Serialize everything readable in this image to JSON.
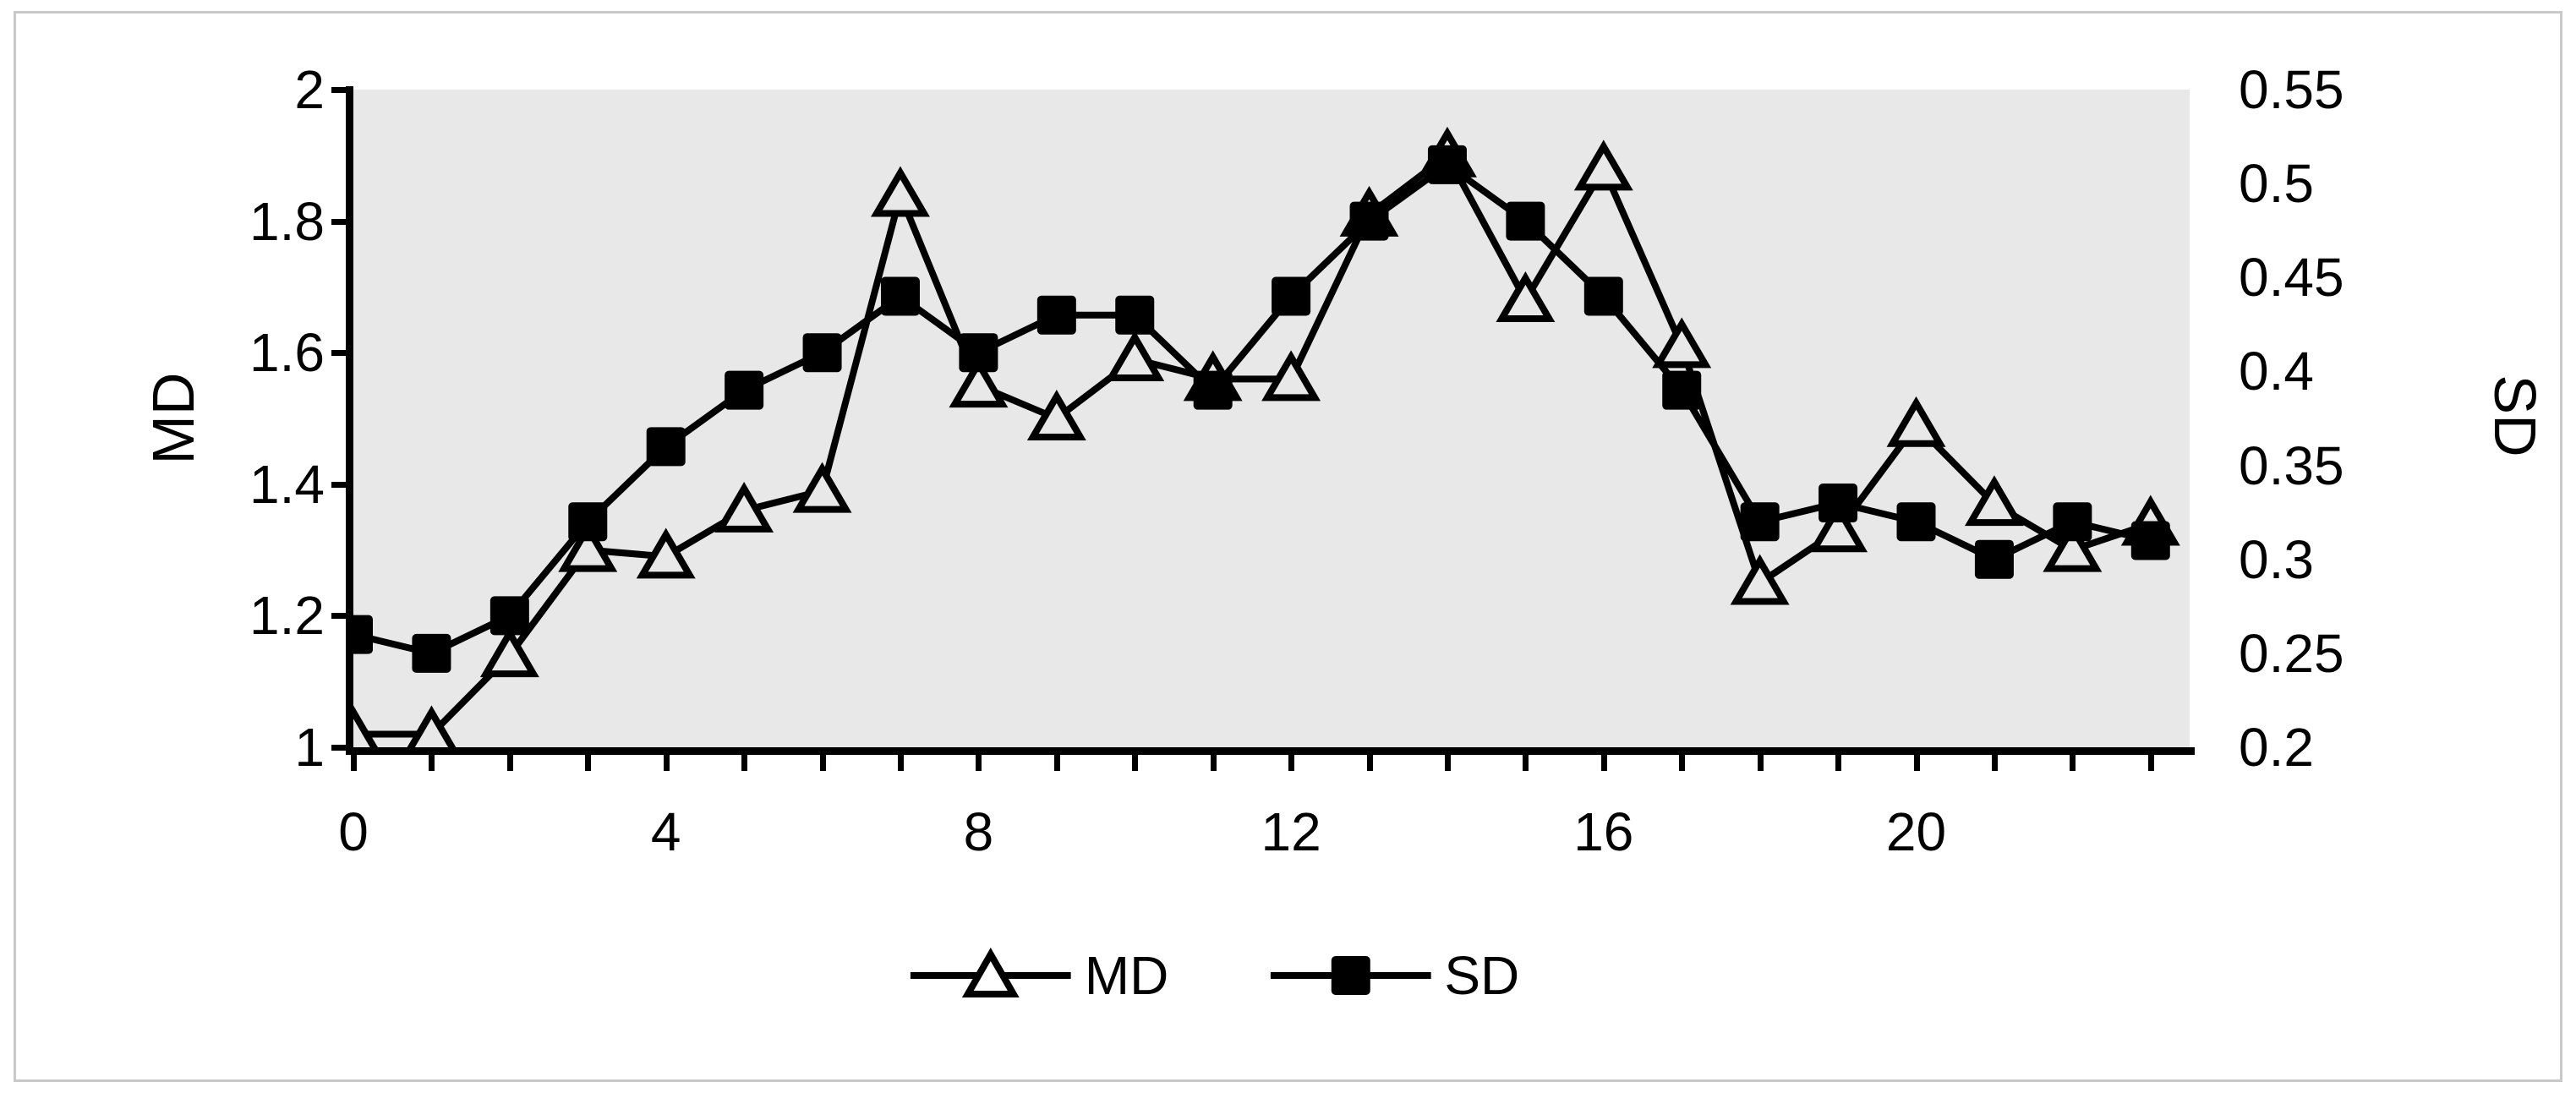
{
  "chart_data": {
    "type": "line",
    "x": [
      0,
      1,
      2,
      3,
      4,
      5,
      6,
      7,
      8,
      9,
      10,
      11,
      12,
      13,
      14,
      15,
      16,
      17,
      18,
      19,
      20,
      21,
      22,
      23
    ],
    "series": [
      {
        "name": "MD",
        "axis": "left",
        "marker": "triangle",
        "values": [
          1.02,
          1.02,
          1.14,
          1.3,
          1.29,
          1.36,
          1.39,
          1.84,
          1.55,
          1.5,
          1.59,
          1.56,
          1.56,
          1.81,
          1.9,
          1.68,
          1.88,
          1.61,
          1.25,
          1.33,
          1.49,
          1.37,
          1.3,
          1.34
        ]
      },
      {
        "name": "SD",
        "axis": "right",
        "marker": "square",
        "values": [
          0.26,
          0.25,
          0.27,
          0.32,
          0.36,
          0.39,
          0.41,
          0.44,
          0.41,
          0.43,
          0.43,
          0.39,
          0.44,
          0.48,
          0.51,
          0.48,
          0.44,
          0.39,
          0.32,
          0.33,
          0.32,
          0.3,
          0.32,
          0.31
        ]
      }
    ],
    "left_axis": {
      "title": "MD",
      "min": 1,
      "max": 2,
      "ticks": [
        {
          "label": "2",
          "value": 2
        },
        {
          "label": "1.8",
          "value": 1.8
        },
        {
          "label": "1.6",
          "value": 1.6
        },
        {
          "label": "1.4",
          "value": 1.4
        },
        {
          "label": "1.2",
          "value": 1.2
        },
        {
          "label": "1",
          "value": 1
        }
      ]
    },
    "right_axis": {
      "title": "SD",
      "min": 0.2,
      "max": 0.55,
      "ticks": [
        {
          "label": "0.55",
          "value": 0.55
        },
        {
          "label": "0.5",
          "value": 0.5
        },
        {
          "label": "0.45",
          "value": 0.45
        },
        {
          "label": "0.4",
          "value": 0.4
        },
        {
          "label": "0.35",
          "value": 0.35
        },
        {
          "label": "0.3",
          "value": 0.3
        },
        {
          "label": "0.25",
          "value": 0.25
        },
        {
          "label": "0.2",
          "value": 0.2
        }
      ]
    },
    "x_axis": {
      "min": 0,
      "max": 23.5,
      "tick_every": 1,
      "labels": [
        {
          "label": "0",
          "value": 0
        },
        {
          "label": "4",
          "value": 4
        },
        {
          "label": "8",
          "value": 8
        },
        {
          "label": "12",
          "value": 12
        },
        {
          "label": "16",
          "value": 16
        },
        {
          "label": "20",
          "value": 20
        }
      ]
    },
    "legend": {
      "position": "bottom",
      "items": [
        {
          "label": "MD",
          "marker": "triangle"
        },
        {
          "label": "SD",
          "marker": "square"
        }
      ]
    },
    "layout_hints": {
      "grid": "off",
      "plot_background": "#e8e8e8",
      "series_color": "#000000",
      "page_background": "#ffffff",
      "frame_border": "#c9c9c9"
    }
  }
}
